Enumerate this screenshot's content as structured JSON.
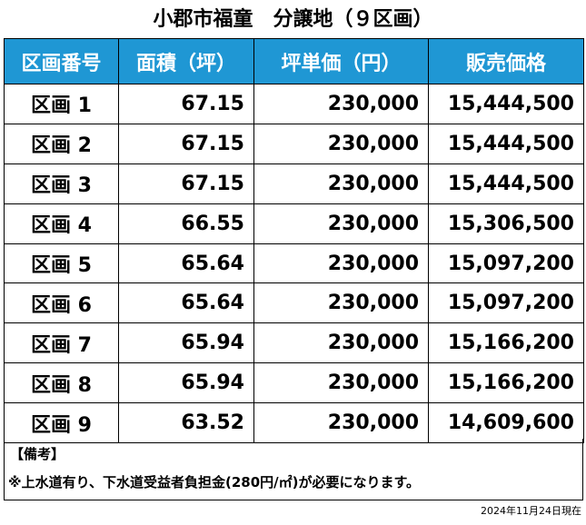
{
  "title": "小郡市福童　分譲地（９区画）",
  "headers": [
    "区画番号",
    "面積（坪）",
    "坪単価（円）",
    "販売価格"
  ],
  "rows": [
    [
      "区画 1",
      "67.15",
      "230,000",
      "15,444,500"
    ],
    [
      "区画 2",
      "67.15",
      "230,000",
      "15,444,500"
    ],
    [
      "区画 3",
      "67.15",
      "230,000",
      "15,444,500"
    ],
    [
      "区画 4",
      "66.55",
      "230,000",
      "15,306,500"
    ],
    [
      "区画 5",
      "65.64",
      "230,000",
      "15,097,200"
    ],
    [
      "区画 6",
      "65.64",
      "230,000",
      "15,097,200"
    ],
    [
      "区画 7",
      "65.94",
      "230,000",
      "15,166,200"
    ],
    [
      "区画 8",
      "65.94",
      "230,000",
      "15,166,200"
    ],
    [
      "区画 9",
      "63.52",
      "230,000",
      "14,609,600"
    ]
  ],
  "notes": {
    "heading": "【備考】",
    "text": "※上水道有り、下水道受益者負担金(280円/㎡)が必要になります。"
  },
  "date": "2024年11月24日現在",
  "colors": {
    "header_bg": "#1f97d4",
    "header_text": "#ffffff"
  }
}
